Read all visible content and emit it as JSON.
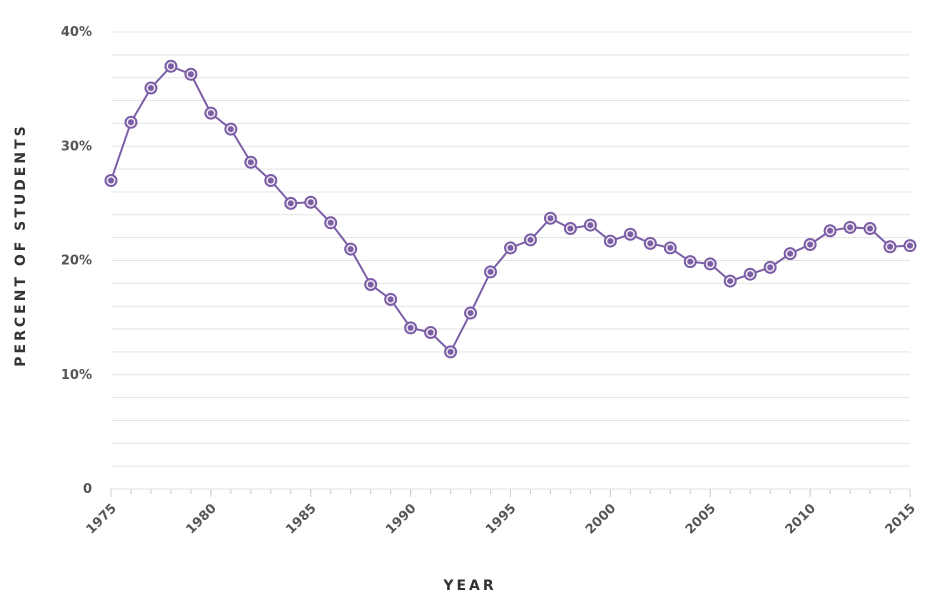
{
  "chart_data": {
    "type": "line",
    "x_label": "YEAR",
    "y_label": "PERCENT OF STUDENTS",
    "x": [
      1975,
      1976,
      1977,
      1978,
      1979,
      1980,
      1981,
      1982,
      1983,
      1984,
      1985,
      1986,
      1987,
      1988,
      1989,
      1990,
      1991,
      1992,
      1993,
      1994,
      1995,
      1996,
      1997,
      1998,
      1999,
      2000,
      2001,
      2002,
      2003,
      2004,
      2005,
      2006,
      2007,
      2008,
      2009,
      2010,
      2011,
      2012,
      2013,
      2014,
      2015
    ],
    "series": [
      {
        "color": "#7b5ea7",
        "values": [
          27.0,
          32.1,
          35.1,
          37.0,
          36.3,
          32.9,
          31.5,
          28.6,
          27.0,
          25.0,
          25.1,
          23.3,
          21.0,
          17.9,
          16.6,
          14.1,
          13.7,
          12.0,
          15.4,
          19.0,
          21.1,
          21.8,
          23.7,
          22.8,
          23.1,
          21.7,
          22.3,
          21.5,
          21.1,
          19.9,
          19.7,
          18.2,
          18.8,
          19.4,
          20.6,
          21.4,
          22.6,
          22.9,
          22.8,
          21.2,
          21.3
        ]
      }
    ],
    "xlim": [
      1975,
      2015
    ],
    "xticks": [
      1975,
      1980,
      1985,
      1990,
      1995,
      2000,
      2005,
      2010,
      2015
    ],
    "minor_xticks": [
      1975,
      1976,
      1977,
      1978,
      1979,
      1980,
      1981,
      1982,
      1983,
      1984,
      1985,
      1986,
      1987,
      1988,
      1989,
      1990,
      1991,
      1992,
      1993,
      1994,
      1995,
      1996,
      1997,
      1998,
      1999,
      2000,
      2001,
      2002,
      2003,
      2004,
      2005,
      2006,
      2007,
      2008,
      2009,
      2010,
      2011,
      2012,
      2013,
      2014,
      2015
    ],
    "ylim": [
      0,
      40
    ],
    "yticks": [
      0,
      {
        "value": 10,
        "label": "10%"
      },
      {
        "value": 20,
        "label": "20%"
      },
      {
        "value": 30,
        "label": "30%"
      },
      {
        "value": 40,
        "label": "40%"
      }
    ],
    "minor_yticks": [
      2,
      4,
      6,
      8,
      12,
      14,
      16,
      18,
      22,
      24,
      26,
      28,
      32,
      34,
      36,
      38
    ],
    "grid": true
  }
}
